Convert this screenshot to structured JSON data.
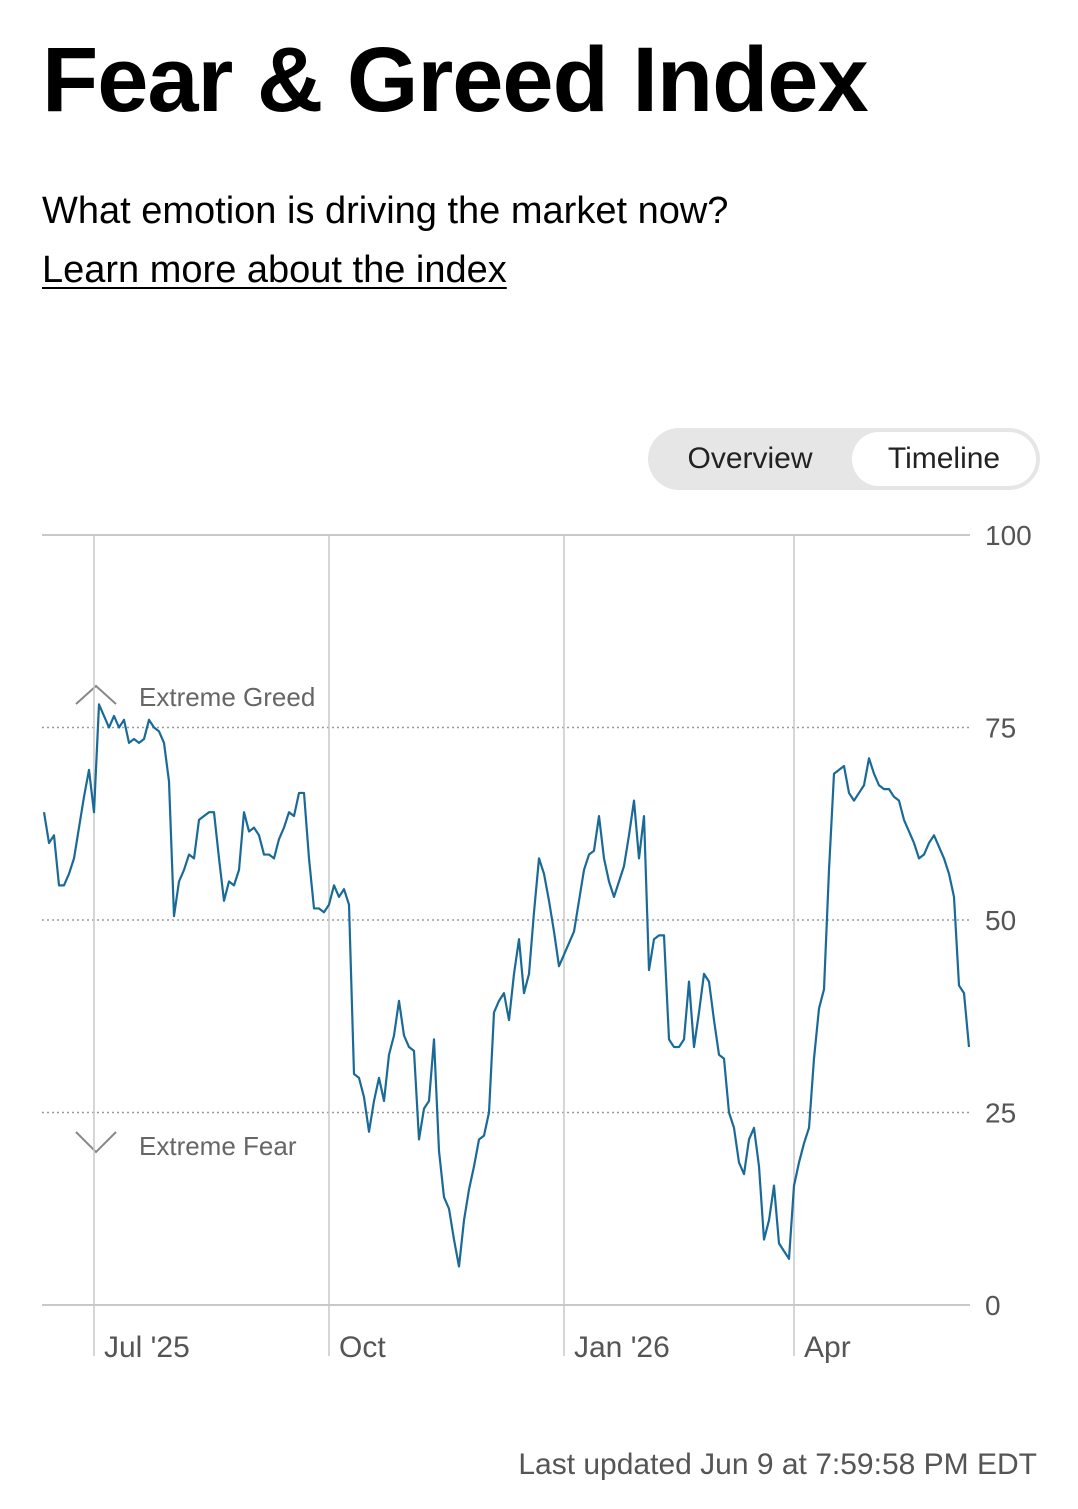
{
  "chart_data": {
    "type": "line",
    "title": "Fear & Greed Index",
    "subtitle": "What emotion is driving the market now?",
    "color": "#1a6a98",
    "categories": [
      null,
      null,
      null,
      null,
      null,
      null,
      null,
      null,
      null,
      null,
      "Jul '25",
      null,
      null,
      null,
      null,
      null,
      null,
      null,
      null,
      null,
      null,
      null,
      null,
      null,
      null,
      null,
      null,
      null,
      null,
      null,
      null,
      null,
      null,
      null,
      null,
      null,
      null,
      null,
      null,
      null,
      null,
      null,
      null,
      null,
      null,
      null,
      null,
      null,
      null,
      null,
      null,
      null,
      null,
      null,
      null,
      null,
      null,
      "Oct",
      null,
      null,
      null,
      null,
      null,
      null,
      null,
      null,
      null,
      null,
      null,
      null,
      null,
      null,
      null,
      null,
      null,
      null,
      null,
      null,
      null,
      null,
      null,
      null,
      null,
      null,
      null,
      null,
      null,
      null,
      null,
      null,
      null,
      null,
      null,
      null,
      null,
      null,
      null,
      null,
      null,
      null,
      null,
      null,
      null,
      null,
      "Jan '26",
      null,
      null,
      null,
      null,
      null,
      null,
      null,
      null,
      null,
      null,
      null,
      null,
      null,
      null,
      null,
      null,
      null,
      null,
      null,
      null,
      null,
      null,
      null,
      null,
      null,
      null,
      null,
      null,
      null,
      null,
      null,
      null,
      null,
      null,
      null,
      null,
      null,
      null,
      null,
      null,
      null,
      null,
      null,
      null,
      null,
      "Apr",
      null,
      null,
      null,
      null,
      null,
      null,
      null,
      null,
      null,
      null,
      null,
      null,
      null,
      null,
      null,
      null,
      null,
      null,
      null,
      null,
      null,
      null,
      null,
      null,
      null,
      null,
      null,
      null,
      null,
      null,
      null,
      null,
      null,
      null,
      null
    ],
    "values": [
      64,
      60,
      61,
      54.5,
      54.5,
      56,
      58,
      62,
      66,
      69.5,
      64,
      78,
      76.5,
      75,
      76.5,
      75,
      76,
      73,
      73.5,
      73,
      73.5,
      76,
      75,
      74.5,
      73,
      68,
      50.5,
      55,
      56.5,
      58.5,
      58,
      63,
      63.5,
      64,
      64,
      58,
      52.5,
      55,
      54.5,
      56.5,
      64,
      61.5,
      62,
      61,
      58.5,
      58.5,
      58,
      60.5,
      62,
      64,
      63.5,
      66.5,
      66.5,
      58,
      51.5,
      51.5,
      51,
      52,
      54.5,
      53,
      54,
      52,
      30,
      29.5,
      27,
      22.5,
      26.5,
      29.5,
      26.5,
      32.5,
      35,
      39.5,
      35,
      33.5,
      33,
      21.5,
      25.5,
      26.5,
      34.5,
      20,
      14,
      12.5,
      8.5,
      5,
      11,
      15,
      18,
      21.5,
      22,
      25,
      38,
      39.5,
      40.5,
      37,
      43,
      47.5,
      40.5,
      43,
      51,
      58,
      56,
      52.5,
      48.5,
      44,
      45.5,
      47,
      48.5,
      52.5,
      56.5,
      58.5,
      59,
      63.5,
      58,
      55,
      53,
      55,
      57,
      61,
      65.5,
      58,
      63.5,
      43.5,
      47.5,
      48,
      48,
      34.5,
      33.5,
      33.5,
      34.5,
      42,
      33.5,
      38,
      43,
      42,
      37,
      32.5,
      32,
      25,
      23,
      18.5,
      17,
      21.5,
      23,
      18,
      8.5,
      11,
      15.5,
      8,
      7,
      6,
      15.5,
      18.5,
      21,
      23,
      32,
      38.5,
      41,
      56.5,
      69,
      69.5,
      70,
      66.5,
      65.5,
      66.5,
      67.5,
      71,
      69,
      67.5,
      67,
      67,
      66,
      65.5,
      63,
      61.5,
      60,
      58,
      58.5,
      60,
      61,
      59.5,
      58,
      56,
      53,
      41.5,
      40.5,
      33.5
    ],
    "ylim": [
      0,
      100
    ],
    "yticks": [
      0,
      25,
      50,
      75,
      100
    ],
    "grid": true,
    "annotations": [
      "Extreme Greed",
      "Extreme Fear"
    ]
  },
  "link": "Learn more about the index",
  "tabs": [
    "Overview",
    "Timeline"
  ],
  "footer": "Last updated Jun 9 at 7:59:58 PM EDT"
}
